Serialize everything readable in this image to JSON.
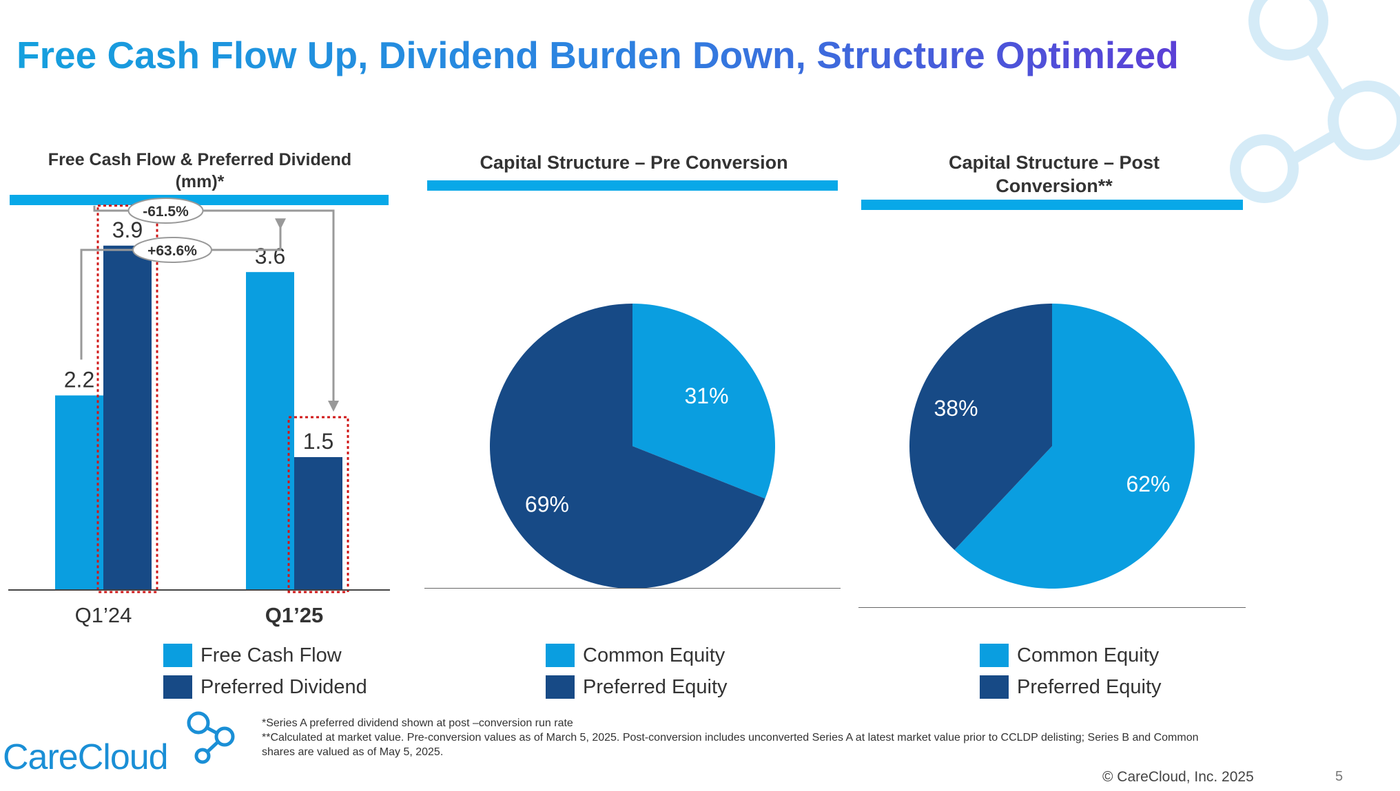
{
  "slide": {
    "title": "Free Cash Flow Up, Dividend Burden Down, Structure Optimized",
    "page_number": "5",
    "copyright": "© CareCloud, Inc. 2025",
    "logo_text": "CareCloud"
  },
  "colors": {
    "light_blue": "#0a9ee0",
    "dark_blue": "#174a86",
    "accent_bar": "#08a8e8",
    "highlight_box": "#d01818",
    "arrow": "#999999"
  },
  "footnotes": [
    "*Series A preferred dividend shown at post –conversion run rate",
    "**Calculated at market value. Pre-conversion values as of March 5, 2025. Post-conversion includes unconverted Series A at latest market value prior to CCLDP delisting; Series B and Common shares are valued as of May 5, 2025."
  ],
  "chart_data": [
    {
      "type": "bar",
      "title": "Free Cash Flow & Preferred Dividend (mm)*",
      "categories": [
        "Q1’24",
        "Q1’25"
      ],
      "series": [
        {
          "name": "Free Cash Flow",
          "values": [
            2.2,
            3.6
          ],
          "color": "#0a9ee0"
        },
        {
          "name": "Preferred Dividend",
          "values": [
            3.9,
            1.5
          ],
          "color": "#174a86"
        }
      ],
      "ylim": [
        0,
        3.9
      ],
      "annotations": [
        {
          "label": "-61.5%",
          "from": "Preferred Dividend Q1’24",
          "to": "Preferred Dividend Q1’25"
        },
        {
          "label": "+63.6%",
          "from": "Free Cash Flow Q1’24",
          "to": "Free Cash Flow Q1’25"
        }
      ],
      "legend": "bottom"
    },
    {
      "type": "pie",
      "title": "Capital Structure – Pre Conversion",
      "slices": [
        {
          "name": "Common Equity",
          "value": 31,
          "label": "31%",
          "color": "#0a9ee0"
        },
        {
          "name": "Preferred Equity",
          "value": 69,
          "label": "69%",
          "color": "#174a86"
        }
      ],
      "legend": "bottom"
    },
    {
      "type": "pie",
      "title": "Capital Structure – Post Conversion**",
      "slices": [
        {
          "name": "Common Equity",
          "value": 62,
          "label": "62%",
          "color": "#0a9ee0"
        },
        {
          "name": "Preferred Equity",
          "value": 38,
          "label": "38%",
          "color": "#174a86"
        }
      ],
      "legend": "bottom"
    }
  ]
}
